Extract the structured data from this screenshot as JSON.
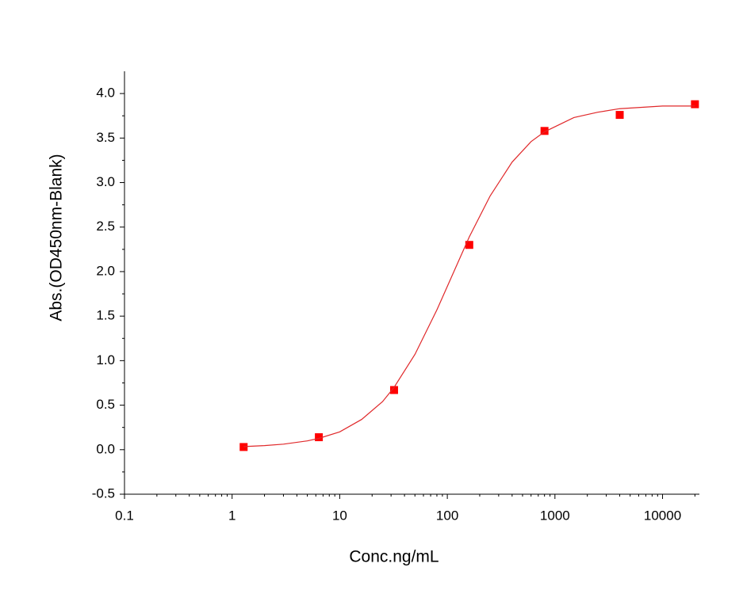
{
  "chart_data": {
    "type": "scatter",
    "x_label": "Conc.ng/mL",
    "y_label": "Abs.(OD450nm-Blank)",
    "xscale": "log",
    "xlim": [
      0.1,
      22000
    ],
    "xticks": [
      0.1,
      1,
      10,
      100,
      1000,
      10000
    ],
    "ylim": [
      -0.5,
      4.25
    ],
    "yticks": [
      -0.5,
      {
        "value": 0,
        "label": "0.0"
      },
      0.5,
      {
        "value": 1,
        "label": "1.0"
      },
      1.5,
      {
        "value": 2,
        "label": "2.0"
      },
      2.5,
      {
        "value": 3,
        "label": "3.0"
      },
      3.5,
      {
        "value": 4,
        "label": "4.0"
      }
    ],
    "minor_ticks": true,
    "grid": false,
    "series": [
      {
        "mode": "markers",
        "marker": "square",
        "color": "#ff0000",
        "x": [
          1.28,
          6.4,
          32,
          160,
          800,
          4000,
          20000
        ],
        "values": [
          0.03,
          0.14,
          0.67,
          2.3,
          3.58,
          3.76,
          3.88
        ]
      },
      {
        "mode": "line",
        "color": "#e0282a",
        "x": [
          1.28,
          2,
          3,
          5,
          6.4,
          10,
          16,
          25,
          32,
          50,
          80,
          120,
          160,
          250,
          400,
          600,
          800,
          1500,
          2500,
          4000,
          10000,
          20000
        ],
        "values": [
          0.035,
          0.046,
          0.062,
          0.099,
          0.127,
          0.2,
          0.34,
          0.54,
          0.7,
          1.07,
          1.57,
          2.05,
          2.39,
          2.85,
          3.23,
          3.46,
          3.57,
          3.73,
          3.79,
          3.83,
          3.86,
          3.86
        ]
      }
    ]
  }
}
